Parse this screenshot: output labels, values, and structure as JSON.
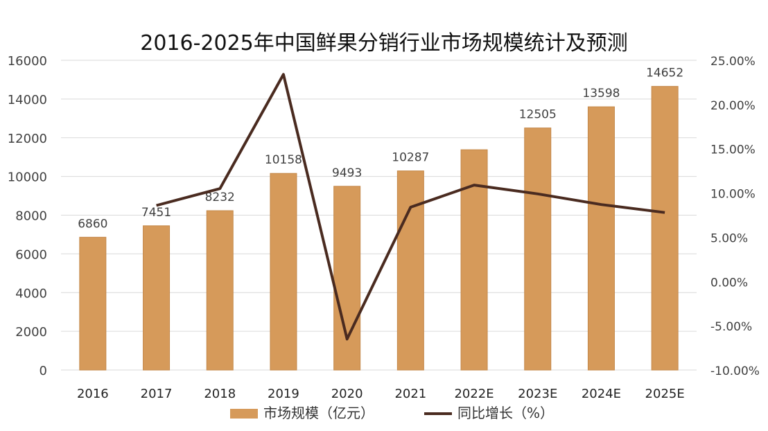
{
  "chart_data": {
    "type": "bar+line",
    "title": "2016-2025年中国鲜果分销行业市场规模统计及预测",
    "categories": [
      "2016",
      "2017",
      "2018",
      "2019",
      "2020",
      "2021",
      "2022E",
      "2023E",
      "2024E",
      "2025E"
    ],
    "series": [
      {
        "name": "市场规模（亿元）",
        "type": "bar",
        "axis": "left",
        "values": [
          6860,
          7451,
          8232,
          10158,
          9493,
          10287,
          11380,
          12505,
          13598,
          14652
        ],
        "data_labels": [
          "6860",
          "7451",
          "8232",
          "10158",
          "9493",
          "10287",
          "",
          "12505",
          "13598",
          "14652"
        ]
      },
      {
        "name": "同比增长（%）",
        "type": "line",
        "axis": "right",
        "values": [
          null,
          8.6,
          10.5,
          23.4,
          -6.5,
          8.4,
          10.9,
          9.9,
          8.7,
          7.8
        ]
      }
    ],
    "y_left": {
      "min": 0,
      "max": 16000,
      "step": 2000,
      "ticks": [
        "0",
        "2000",
        "4000",
        "6000",
        "8000",
        "10000",
        "12000",
        "14000",
        "16000"
      ]
    },
    "y_right": {
      "min": -10,
      "max": 25,
      "step": 5,
      "ticks": [
        "-10.00%",
        "-5.00%",
        "0.00%",
        "5.00%",
        "10.00%",
        "15.00%",
        "20.00%",
        "25.00%"
      ]
    },
    "legend": {
      "position": "bottom",
      "items": [
        "市场规模（亿元）",
        "同比增长（%）"
      ]
    },
    "colors": {
      "bar": "#D69A5A",
      "bar_stroke": "#C4884A",
      "line": "#4A2B20",
      "grid": "#D9D9D9",
      "axis_text": "#404040",
      "title": "#111111"
    }
  }
}
